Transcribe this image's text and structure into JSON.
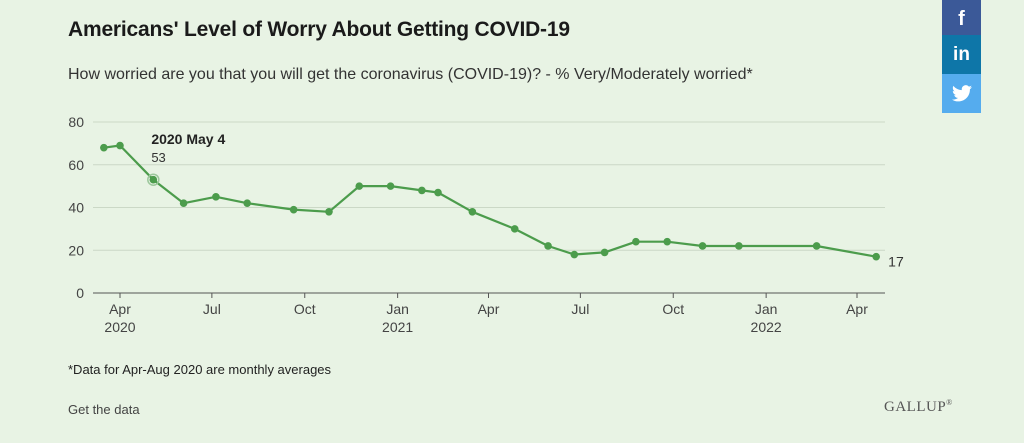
{
  "chart_data": {
    "type": "line",
    "title": "Americans' Level of Worry About Getting COVID-19",
    "subtitle": "How worried are you that you will get the coronavirus (COVID-19)? - % Very/Moderately worried*",
    "ylim": [
      0,
      80
    ],
    "y_ticks": [
      0,
      20,
      40,
      60,
      80
    ],
    "grid": true,
    "x_tick_labels": [
      {
        "date": "2020-04-01",
        "month": "Apr",
        "year": "2020"
      },
      {
        "date": "2020-07-01",
        "month": "Jul",
        "year": ""
      },
      {
        "date": "2020-10-01",
        "month": "Oct",
        "year": ""
      },
      {
        "date": "2021-01-01",
        "month": "Jan",
        "year": "2021"
      },
      {
        "date": "2021-04-01",
        "month": "Apr",
        "year": ""
      },
      {
        "date": "2021-07-01",
        "month": "Jul",
        "year": ""
      },
      {
        "date": "2021-10-01",
        "month": "Oct",
        "year": ""
      },
      {
        "date": "2022-01-01",
        "month": "Jan",
        "year": "2022"
      },
      {
        "date": "2022-04-01",
        "month": "Apr",
        "year": ""
      }
    ],
    "series": [
      {
        "color": "#4c9c4c",
        "points": [
          {
            "x": "2020-03-16",
            "y": 68
          },
          {
            "x": "2020-04-01",
            "y": 69
          },
          {
            "x": "2020-05-04",
            "y": 53
          },
          {
            "x": "2020-06-03",
            "y": 42
          },
          {
            "x": "2020-07-05",
            "y": 45
          },
          {
            "x": "2020-08-05",
            "y": 42
          },
          {
            "x": "2020-09-20",
            "y": 39
          },
          {
            "x": "2020-10-25",
            "y": 38
          },
          {
            "x": "2020-11-24",
            "y": 50
          },
          {
            "x": "2020-12-25",
            "y": 50
          },
          {
            "x": "2021-01-25",
            "y": 48
          },
          {
            "x": "2021-02-10",
            "y": 47
          },
          {
            "x": "2021-03-16",
            "y": 38
          },
          {
            "x": "2021-04-27",
            "y": 30
          },
          {
            "x": "2021-05-30",
            "y": 22
          },
          {
            "x": "2021-06-25",
            "y": 18
          },
          {
            "x": "2021-07-25",
            "y": 19
          },
          {
            "x": "2021-08-25",
            "y": 24
          },
          {
            "x": "2021-09-25",
            "y": 24
          },
          {
            "x": "2021-10-30",
            "y": 22
          },
          {
            "x": "2021-12-05",
            "y": 22
          },
          {
            "x": "2022-02-20",
            "y": 22
          },
          {
            "x": "2022-04-20",
            "y": 17
          }
        ]
      }
    ],
    "annotations": [
      {
        "label": "2020 May 4",
        "value": "53",
        "x": "2020-05-04",
        "y": 53
      },
      {
        "value": "17",
        "x": "2022-04-20",
        "y": 17
      }
    ]
  },
  "footnote": "*Data for Apr-Aug 2020 are monthly averages",
  "links": {
    "get_data": "Get the data"
  },
  "brand": "GALLUP",
  "brand_mark": "®",
  "social": {
    "facebook": {
      "icon": "facebook-icon",
      "glyph": "f"
    },
    "linkedin": {
      "icon": "linkedin-icon",
      "glyph": "in"
    },
    "twitter": {
      "icon": "twitter-icon"
    }
  }
}
